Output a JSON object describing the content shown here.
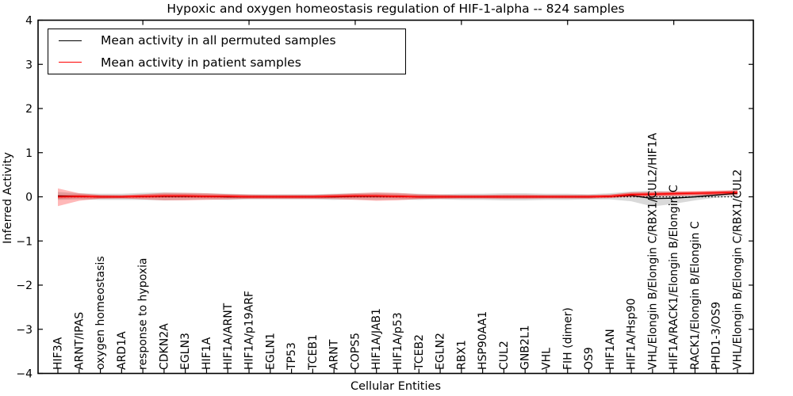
{
  "chart_data": {
    "type": "line",
    "title": "Hypoxic and oxygen homeostasis regulation of HIF-1-alpha -- 824 samples",
    "xlabel": "Cellular Entities",
    "ylabel": "Inferred Activity",
    "ylim": [
      -4,
      4
    ],
    "yticks": [
      -4,
      -3,
      -2,
      -1,
      0,
      1,
      2,
      3,
      4
    ],
    "ytick_labels": [
      "−4",
      "−3",
      "−2",
      "−1",
      "0",
      "1",
      "2",
      "3",
      "4"
    ],
    "grid": false,
    "zero_line_style": "dotted",
    "legend_position": "upper left",
    "top_tick_indices": [
      4,
      9,
      14,
      19,
      24,
      29
    ],
    "categories": [
      "HIF3A",
      "ARNT/IPAS",
      "oxygen homeostasis",
      "ARD1A",
      "response to hypoxia",
      "CDKN2A",
      "EGLN3",
      "HIF1A",
      "HIF1A/ARNT",
      "HIF1A/p19ARF",
      "EGLN1",
      "TP53",
      "TCEB1",
      "ARNT",
      "COPS5",
      "HIF1A/JAB1",
      "HIF1A/p53",
      "TCEB2",
      "EGLN2",
      "RBX1",
      "HSP90AA1",
      "CUL2",
      "GNB2L1",
      "VHL",
      "FIH (dimer)",
      "OS9",
      "HIF1AN",
      "HIF1A/Hsp90",
      "VHL/Elongin B/Elongin C/RBX1/CUL2/HIF1A",
      "HIF1A/RACK1/Elongin B/Elongin C",
      "RACK1/Elongin B/Elongin C",
      "PHD1-3/OS9",
      "VHL/Elongin B/Elongin C/RBX1/CUL2"
    ],
    "series": [
      {
        "name": "Mean activity in all permuted samples",
        "color": "#000000",
        "values": [
          0.02,
          0.01,
          0.0,
          0.0,
          0.01,
          0.01,
          0.01,
          0.01,
          0.0,
          0.0,
          0.0,
          0.0,
          0.0,
          0.0,
          0.01,
          0.01,
          0.01,
          0.0,
          0.0,
          0.0,
          0.0,
          0.0,
          0.0,
          0.0,
          0.0,
          0.0,
          0.01,
          0.03,
          -0.04,
          -0.03,
          0.0,
          0.04,
          0.08
        ]
      },
      {
        "name": "Mean activity in patient samples",
        "color": "#ff0000",
        "values": [
          0.0,
          0.01,
          0.0,
          0.0,
          0.01,
          0.02,
          0.02,
          0.01,
          0.01,
          0.0,
          0.0,
          0.0,
          0.0,
          0.01,
          0.02,
          0.02,
          0.01,
          0.0,
          0.0,
          0.0,
          0.0,
          0.0,
          0.0,
          0.0,
          0.0,
          0.0,
          0.01,
          0.05,
          0.06,
          0.07,
          0.08,
          0.09,
          0.1
        ]
      }
    ],
    "bands": [
      {
        "name": "permuted-samples-spread",
        "color": "#808080",
        "opacity": 0.3,
        "upper": [
          0.11,
          0.08,
          0.07,
          0.07,
          0.09,
          0.1,
          0.09,
          0.08,
          0.07,
          0.06,
          0.06,
          0.06,
          0.06,
          0.07,
          0.08,
          0.09,
          0.08,
          0.07,
          0.06,
          0.07,
          0.07,
          0.08,
          0.08,
          0.07,
          0.07,
          0.06,
          0.08,
          0.12,
          0.14,
          0.12,
          0.1,
          0.12,
          0.15
        ],
        "lower": [
          -0.07,
          -0.06,
          -0.07,
          -0.07,
          -0.07,
          -0.08,
          -0.07,
          -0.06,
          -0.07,
          -0.06,
          -0.06,
          -0.06,
          -0.06,
          -0.07,
          -0.06,
          -0.07,
          -0.06,
          -0.07,
          -0.06,
          -0.07,
          -0.07,
          -0.08,
          -0.08,
          -0.07,
          -0.07,
          -0.06,
          -0.06,
          -0.1,
          -0.22,
          -0.16,
          -0.08,
          -0.02,
          0.01
        ]
      },
      {
        "name": "patient-samples-spread",
        "color": "#ff0000",
        "opacity": 0.28,
        "upper": [
          0.19,
          0.08,
          0.04,
          0.03,
          0.06,
          0.09,
          0.09,
          0.08,
          0.06,
          0.05,
          0.04,
          0.04,
          0.04,
          0.06,
          0.08,
          0.1,
          0.09,
          0.06,
          0.05,
          0.04,
          0.04,
          0.05,
          0.05,
          0.04,
          0.04,
          0.04,
          0.05,
          0.1,
          0.11,
          0.12,
          0.13,
          0.14,
          0.15
        ],
        "lower": [
          -0.21,
          -0.09,
          -0.04,
          -0.03,
          -0.06,
          -0.08,
          -0.08,
          -0.07,
          -0.06,
          -0.04,
          -0.04,
          -0.04,
          -0.04,
          -0.05,
          -0.07,
          -0.09,
          -0.08,
          -0.05,
          -0.04,
          -0.03,
          -0.03,
          -0.04,
          -0.04,
          -0.03,
          -0.03,
          -0.03,
          -0.02,
          0.0,
          0.01,
          0.02,
          0.03,
          0.04,
          0.04
        ]
      }
    ],
    "legend": {
      "entries": [
        {
          "label": "Mean activity in all permuted samples",
          "color": "#000000"
        },
        {
          "label": "Mean activity in patient samples",
          "color": "#ff0000"
        }
      ]
    }
  }
}
